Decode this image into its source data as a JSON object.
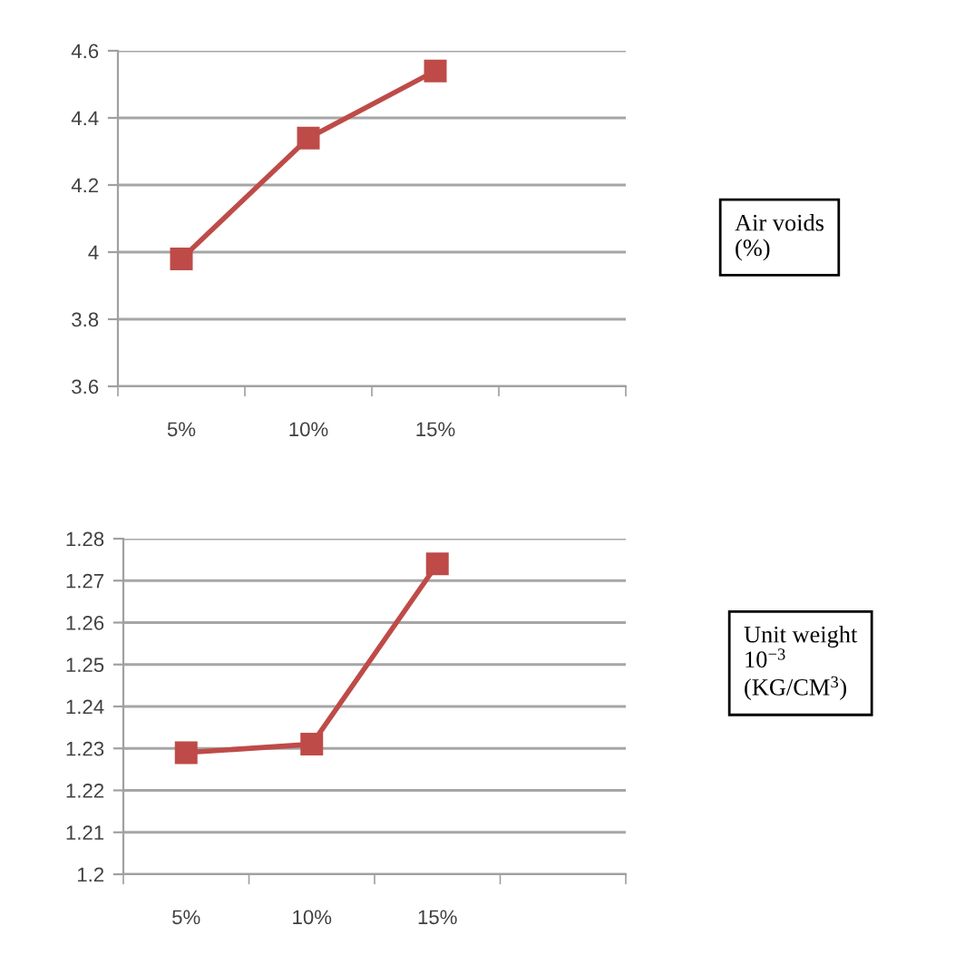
{
  "chart_data": [
    {
      "type": "line",
      "categories": [
        "5%",
        "10%",
        "15%",
        null
      ],
      "series": [
        {
          "color": "#be4b48",
          "values": [
            3.98,
            4.34,
            4.54,
            null
          ]
        }
      ],
      "ylim": [
        3.6,
        4.6
      ],
      "yticks": [
        3.6,
        3.8,
        4,
        4.2,
        4.4,
        4.6
      ],
      "grid": "y",
      "marker": "square",
      "line_style": "solid",
      "annotations": [
        "Air voids\n(%)"
      ]
    },
    {
      "type": "line",
      "categories": [
        "5%",
        "10%",
        "15%",
        null
      ],
      "series": [
        {
          "color": "#be4b48",
          "values": [
            1.229,
            1.231,
            1.274,
            null
          ]
        }
      ],
      "ylim": [
        1.2,
        1.28
      ],
      "yticks": [
        1.2,
        1.21,
        1.22,
        1.23,
        1.24,
        1.25,
        1.26,
        1.27,
        1.28
      ],
      "grid": "y",
      "marker": "square",
      "line_style": "solid",
      "annotations": [
        "Unit weight\n10$^{−3}$\n(KG/CM$^{3}$)"
      ]
    }
  ]
}
